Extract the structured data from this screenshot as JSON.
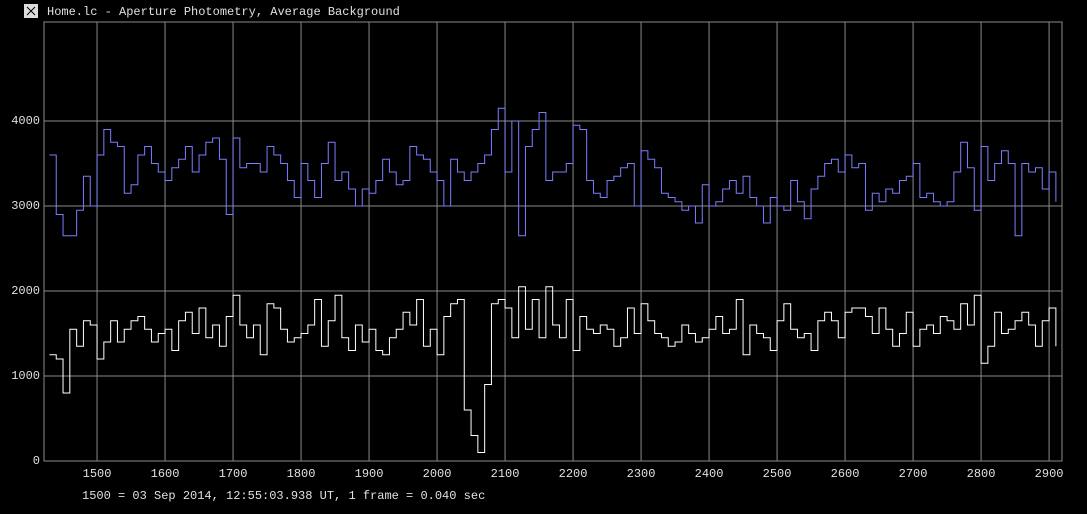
{
  "chart_data": {
    "type": "line",
    "drawstyle": "steps",
    "title": "Home.lc - Aperture Photometry, Average Background",
    "footnote": "1500 = 03 Sep 2014, 12:55:03.938 UT, 1 frame = 0.040 sec",
    "x": [
      1430,
      1440,
      1450,
      1460,
      1470,
      1480,
      1490,
      1500,
      1510,
      1520,
      1530,
      1540,
      1550,
      1560,
      1570,
      1580,
      1590,
      1600,
      1610,
      1620,
      1630,
      1640,
      1650,
      1660,
      1670,
      1680,
      1690,
      1700,
      1710,
      1720,
      1730,
      1740,
      1750,
      1760,
      1770,
      1780,
      1790,
      1800,
      1810,
      1820,
      1830,
      1840,
      1850,
      1860,
      1870,
      1880,
      1890,
      1900,
      1910,
      1920,
      1930,
      1940,
      1950,
      1960,
      1970,
      1980,
      1990,
      2000,
      2010,
      2020,
      2030,
      2040,
      2050,
      2060,
      2070,
      2080,
      2090,
      2100,
      2110,
      2120,
      2130,
      2140,
      2150,
      2160,
      2170,
      2180,
      2190,
      2200,
      2210,
      2220,
      2230,
      2240,
      2250,
      2260,
      2270,
      2280,
      2290,
      2300,
      2310,
      2320,
      2330,
      2340,
      2350,
      2360,
      2370,
      2380,
      2390,
      2400,
      2410,
      2420,
      2430,
      2440,
      2450,
      2460,
      2470,
      2480,
      2490,
      2500,
      2510,
      2520,
      2530,
      2540,
      2550,
      2560,
      2570,
      2580,
      2590,
      2600,
      2610,
      2620,
      2630,
      2640,
      2650,
      2660,
      2670,
      2680,
      2690,
      2700,
      2710,
      2720,
      2730,
      2740,
      2750,
      2760,
      2770,
      2780,
      2790,
      2800,
      2810,
      2820,
      2830,
      2840,
      2850,
      2860,
      2870,
      2880,
      2890,
      2900,
      2910
    ],
    "series": [
      {
        "color": "#7c7cff",
        "values": [
          3600,
          2900,
          2650,
          2650,
          2950,
          3350,
          3000,
          3600,
          3900,
          3750,
          3700,
          3150,
          3250,
          3600,
          3700,
          3500,
          3400,
          3300,
          3450,
          3550,
          3700,
          3400,
          3600,
          3750,
          3800,
          3550,
          2900,
          3800,
          3450,
          3500,
          3500,
          3400,
          3700,
          3600,
          3500,
          3300,
          3100,
          3500,
          3300,
          3100,
          3500,
          3750,
          3300,
          3400,
          3200,
          3000,
          3200,
          3150,
          3300,
          3550,
          3400,
          3250,
          3300,
          3700,
          3600,
          3550,
          3400,
          3300,
          3000,
          3550,
          3400,
          3300,
          3400,
          3500,
          3600,
          3900,
          4150,
          3400,
          4000,
          2650,
          3700,
          3900,
          4100,
          3300,
          3400,
          3400,
          3500,
          3950,
          3900,
          3300,
          3150,
          3100,
          3300,
          3350,
          3450,
          3500,
          3000,
          3650,
          3550,
          3450,
          3150,
          3100,
          3050,
          2950,
          3000,
          2800,
          3250,
          3000,
          3050,
          3200,
          3300,
          3150,
          3350,
          3100,
          3000,
          2800,
          3100,
          3000,
          2950,
          3300,
          3050,
          2850,
          3200,
          3350,
          3500,
          3550,
          3400,
          3600,
          3450,
          3500,
          2950,
          3150,
          3050,
          3200,
          3150,
          3300,
          3350,
          3500,
          3100,
          3150,
          3050,
          3000,
          3050,
          3400,
          3750,
          3450,
          2950,
          3700,
          3300,
          3500,
          3650,
          3500,
          2650,
          3500,
          3400,
          3450,
          3200,
          3400,
          3050
        ]
      },
      {
        "color": "#ffffff",
        "values": [
          1250,
          1200,
          800,
          1550,
          1350,
          1650,
          1600,
          1200,
          1400,
          1650,
          1400,
          1550,
          1650,
          1700,
          1550,
          1400,
          1500,
          1550,
          1300,
          1650,
          1750,
          1500,
          1800,
          1450,
          1600,
          1350,
          1700,
          1950,
          1600,
          1450,
          1600,
          1250,
          1850,
          1800,
          1550,
          1400,
          1450,
          1500,
          1600,
          1900,
          1350,
          1650,
          1950,
          1450,
          1300,
          1600,
          1400,
          1550,
          1300,
          1250,
          1450,
          1550,
          1750,
          1600,
          1900,
          1350,
          1550,
          1250,
          1700,
          1850,
          1900,
          600,
          300,
          100,
          900,
          1850,
          1900,
          1800,
          1450,
          2050,
          1550,
          1900,
          1450,
          2050,
          1600,
          1450,
          1900,
          1300,
          1700,
          1550,
          1500,
          1600,
          1550,
          1350,
          1450,
          1800,
          1500,
          1850,
          1650,
          1500,
          1450,
          1350,
          1400,
          1600,
          1500,
          1400,
          1450,
          1550,
          1700,
          1500,
          1550,
          1900,
          1250,
          1600,
          1500,
          1450,
          1300,
          1650,
          1850,
          1550,
          1450,
          1500,
          1300,
          1650,
          1750,
          1650,
          1450,
          1750,
          1800,
          1800,
          1700,
          1500,
          1800,
          1550,
          1350,
          1500,
          1750,
          1350,
          1550,
          1600,
          1500,
          1700,
          1650,
          1550,
          1850,
          1600,
          1950,
          1150,
          1350,
          1750,
          1500,
          1550,
          1650,
          1750,
          1600,
          1350,
          1650,
          1800,
          1350
        ]
      }
    ],
    "xlim": [
      1422,
      2919
    ],
    "ylim": [
      0,
      5165
    ],
    "xticks": [
      1500,
      1600,
      1700,
      1800,
      1900,
      2000,
      2100,
      2200,
      2300,
      2400,
      2500,
      2600,
      2700,
      2800,
      2900
    ],
    "yticks": [
      0,
      1000,
      2000,
      3000,
      4000
    ],
    "grid": true
  }
}
